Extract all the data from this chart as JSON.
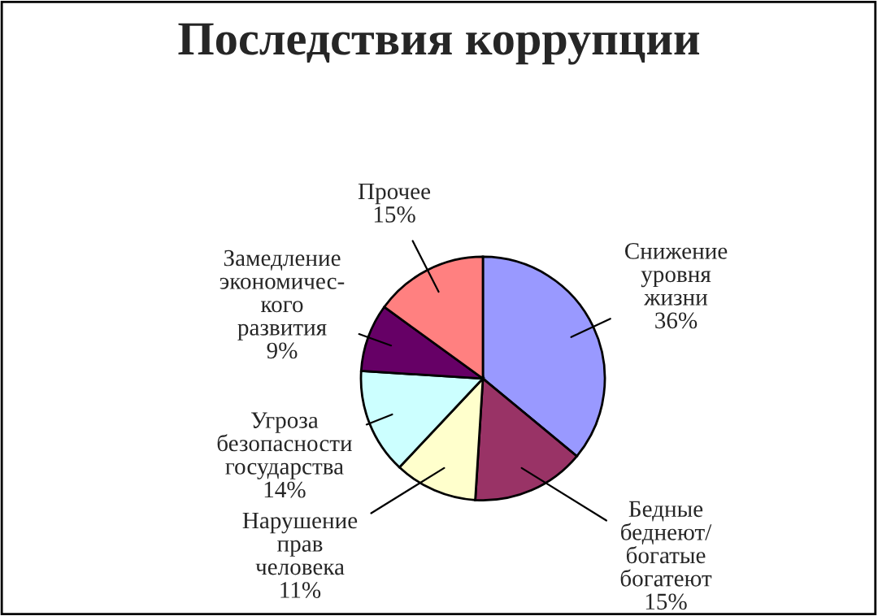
{
  "chart_data": {
    "type": "pie",
    "title": "Последствия коррупции",
    "categories": [
      "Снижение\nуровня\nжизни",
      "Бедные\nбеднеют/\nбогатые\nбогатеют",
      "Нарушение\nправ\nчеловека",
      "Угроза\nбезопасности\nгосударства",
      "Замедление\nэкономичес-\nкого\nразвития",
      "Прочее"
    ],
    "values": [
      36,
      15,
      11,
      14,
      9,
      15
    ],
    "value_labels": [
      "36%",
      "15%",
      "11%",
      "14%",
      "9%",
      "15%"
    ],
    "colors": [
      "#9999ff",
      "#993366",
      "#ffffcc",
      "#ccffff",
      "#660066",
      "#ff8080"
    ],
    "legend": false
  }
}
